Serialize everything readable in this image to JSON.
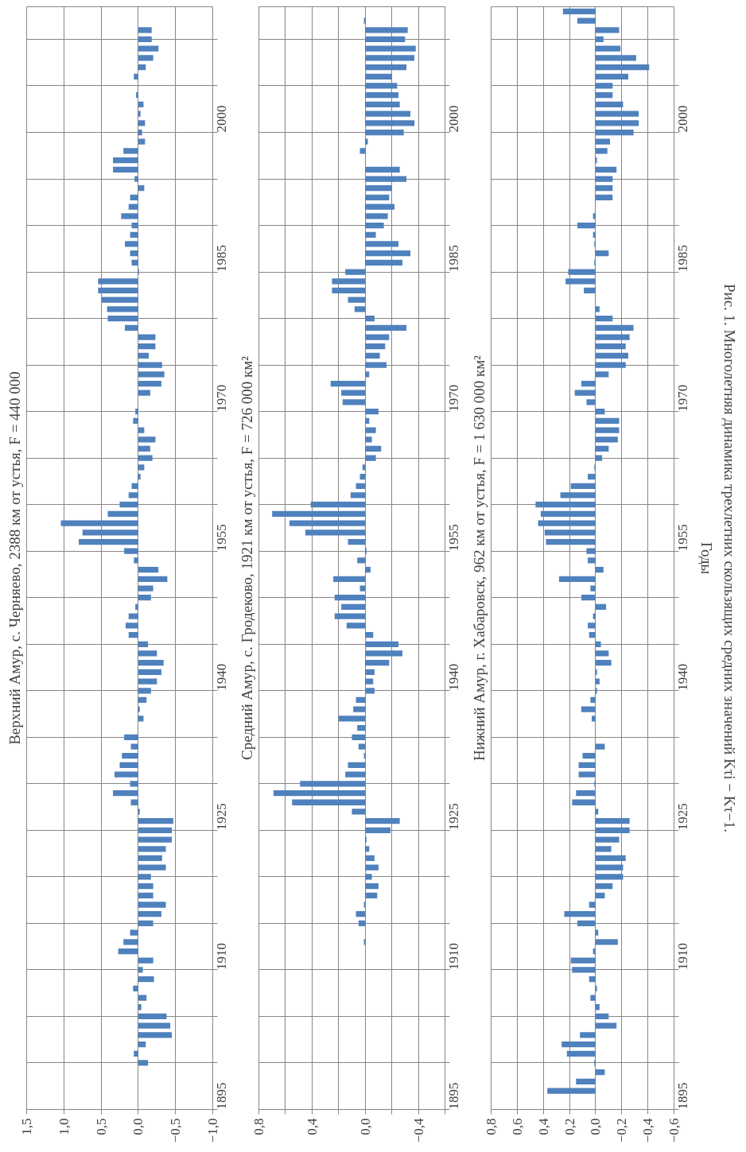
{
  "chart_data": [
    {
      "type": "bar",
      "orientation": "horizontal",
      "title": "Верхний Амур, с. Черняево, 2388 км от устья, F = 440 000",
      "color": "#4f81bd",
      "grid": true,
      "xlim": [
        1.5,
        -1.0
      ],
      "xticks": [
        {
          "value": 1.5,
          "label": "1,5"
        },
        {
          "value": 1.0,
          "label": "1,0"
        },
        {
          "value": 0.5,
          "label": "0,5"
        },
        {
          "value": 0.0,
          "label": "0,0"
        },
        {
          "value": -0.5,
          "label": "−0,5"
        },
        {
          "value": -1.0,
          "label": "−1,0"
        }
      ],
      "ylim": [
        1895,
        2013.5
      ],
      "yticks": [
        1895,
        {
          "value": 1900,
          "label": null
        },
        {
          "value": 1905,
          "label": null
        },
        1910,
        {
          "value": 1915,
          "label": null
        },
        {
          "value": 1920,
          "label": null
        },
        1925,
        {
          "value": 1930,
          "label": null
        },
        {
          "value": 1935,
          "label": null
        },
        1940,
        {
          "value": 1945,
          "label": null
        },
        {
          "value": 1950,
          "label": null
        },
        1955,
        {
          "value": 1960,
          "label": null
        },
        {
          "value": 1965,
          "label": null
        },
        1970,
        {
          "value": 1975,
          "label": null
        },
        {
          "value": 1980,
          "label": null
        },
        1985,
        {
          "value": 1990,
          "label": null
        },
        {
          "value": 1995,
          "label": null
        },
        2000,
        {
          "value": 2005,
          "label": null
        },
        {
          "value": 2010,
          "label": null
        }
      ],
      "x": [
        1900,
        1901,
        1902,
        1903,
        1904,
        1905,
        1906,
        1907,
        1908,
        1909,
        1910,
        1911,
        1912,
        1913,
        1914,
        1915,
        1916,
        1917,
        1918,
        1919,
        1920,
        1921,
        1922,
        1923,
        1924,
        1925,
        1926,
        1927,
        1928,
        1929,
        1930,
        1931,
        1932,
        1933,
        1934,
        1935,
        1936,
        1937,
        1938,
        1939,
        1940,
        1941,
        1942,
        1943,
        1944,
        1945,
        1946,
        1947,
        1948,
        1949,
        1950,
        1951,
        1952,
        1953,
        1954,
        1955,
        1956,
        1957,
        1958,
        1959,
        1960,
        1961,
        1962,
        1963,
        1964,
        1965,
        1966,
        1967,
        1968,
        1969,
        1970,
        1971,
        1972,
        1973,
        1974,
        1975,
        1976,
        1977,
        1978,
        1979,
        1980,
        1981,
        1982,
        1983,
        1984,
        1985,
        1986,
        1987,
        1988,
        1989,
        1990,
        1991,
        1992,
        1993,
        1994,
        1995,
        1996,
        1997,
        1998,
        1999,
        2000,
        2001,
        2002,
        2003,
        2004,
        2005,
        2006,
        2007,
        2008,
        2009,
        2010,
        2011
      ],
      "values": [
        -0.13,
        0.06,
        -0.1,
        -0.45,
        -0.43,
        -0.38,
        -0.04,
        -0.11,
        0.07,
        -0.21,
        -0.06,
        -0.2,
        0.27,
        0.2,
        0.11,
        -0.2,
        -0.31,
        -0.37,
        -0.2,
        -0.2,
        -0.17,
        -0.37,
        -0.32,
        -0.37,
        -0.45,
        -0.45,
        -0.47,
        -0.02,
        0.1,
        0.34,
        0.11,
        0.32,
        0.25,
        0.22,
        0.1,
        0.19,
        0,
        -0.07,
        -0.02,
        -0.11,
        -0.17,
        -0.25,
        -0.31,
        -0.34,
        -0.25,
        -0.13,
        0.13,
        0.17,
        0.13,
        0.04,
        -0.17,
        -0.2,
        -0.39,
        -0.27,
        0.06,
        0.19,
        0.8,
        0.75,
        1.04,
        0.41,
        0.25,
        0.13,
        0.09,
        -0.03,
        -0.08,
        -0.19,
        -0.16,
        -0.23,
        -0.08,
        0.07,
        0.04,
        0,
        -0.16,
        -0.31,
        -0.35,
        -0.32,
        -0.14,
        -0.23,
        -0.23,
        0.18,
        0.41,
        0.42,
        0.49,
        0.54,
        0.54,
        -0.01,
        0.09,
        0.11,
        0.18,
        0.11,
        0.09,
        0.23,
        0.13,
        0.11,
        -0.08,
        0.05,
        0.34,
        0.34,
        0.2,
        -0.09,
        -0.05,
        -0.09,
        -0.03,
        -0.07,
        0.03,
        0,
        0.06,
        -0.1,
        -0.2,
        -0.27,
        -0.18,
        -0.18
      ]
    },
    {
      "type": "bar",
      "orientation": "horizontal",
      "title": "Средний Амур, с. Гродеково, 1921 км от устья, F = 726 000 км²",
      "color": "#4f81bd",
      "grid": true,
      "xlim": [
        0.8,
        -0.6
      ],
      "xticks": [
        {
          "value": 0.8,
          "label": "0,8"
        },
        {
          "value": 0.6,
          "label": null
        },
        {
          "value": 0.4,
          "label": "0,4"
        },
        {
          "value": 0.2,
          "label": null
        },
        {
          "value": 0.0,
          "label": "0,0"
        },
        {
          "value": -0.2,
          "label": null
        },
        {
          "value": -0.4,
          "label": "−0,4"
        },
        {
          "value": -0.6,
          "label": null
        }
      ],
      "ylim": [
        1895,
        2013.5
      ],
      "yticks": [
        1895,
        {
          "value": 1900,
          "label": null
        },
        {
          "value": 1905,
          "label": null
        },
        1910,
        {
          "value": 1915,
          "label": null
        },
        {
          "value": 1920,
          "label": null
        },
        1925,
        {
          "value": 1930,
          "label": null
        },
        {
          "value": 1935,
          "label": null
        },
        1940,
        {
          "value": 1945,
          "label": null
        },
        {
          "value": 1950,
          "label": null
        },
        1955,
        {
          "value": 1960,
          "label": null
        },
        {
          "value": 1965,
          "label": null
        },
        1970,
        {
          "value": 1975,
          "label": null
        },
        {
          "value": 1980,
          "label": null
        },
        1985,
        {
          "value": 1990,
          "label": null
        },
        {
          "value": 1995,
          "label": null
        },
        2000,
        {
          "value": 2005,
          "label": null
        },
        {
          "value": 2010,
          "label": null
        }
      ],
      "x": [
        1913,
        1914,
        1915,
        1916,
        1917,
        1918,
        1919,
        1920,
        1921,
        1922,
        1923,
        1924,
        1925,
        1926,
        1927,
        1928,
        1929,
        1930,
        1931,
        1932,
        1933,
        1934,
        1935,
        1936,
        1937,
        1938,
        1939,
        1940,
        1941,
        1942,
        1943,
        1944,
        1945,
        1946,
        1947,
        1948,
        1949,
        1950,
        1951,
        1952,
        1953,
        1954,
        1955,
        1956,
        1957,
        1958,
        1959,
        1960,
        1961,
        1962,
        1963,
        1964,
        1965,
        1966,
        1967,
        1968,
        1969,
        1970,
        1971,
        1972,
        1973,
        1974,
        1975,
        1976,
        1977,
        1978,
        1979,
        1980,
        1981,
        1982,
        1983,
        1984,
        1985,
        1986,
        1987,
        1988,
        1989,
        1990,
        1991,
        1992,
        1993,
        1994,
        1995,
        1996,
        1997,
        1998,
        1999,
        2000,
        2001,
        2002,
        2003,
        2004,
        2005,
        2006,
        2007,
        2008,
        2009,
        2010,
        2011,
        2012
      ],
      "values": [
        0.01,
        0,
        0.05,
        0.07,
        0.01,
        -0.09,
        -0.1,
        -0.05,
        -0.1,
        -0.07,
        -0.03,
        -0.01,
        -0.19,
        -0.26,
        0.1,
        0.55,
        0.69,
        0.49,
        0.15,
        0.13,
        0.01,
        0.05,
        0.1,
        0.06,
        0.2,
        0.09,
        0.07,
        -0.07,
        -0.06,
        -0.07,
        -0.18,
        -0.28,
        -0.25,
        -0.06,
        0.14,
        0.23,
        0.18,
        0.23,
        0.04,
        0.24,
        -0.04,
        0.06,
        -0.01,
        0.13,
        0.45,
        0.57,
        0.7,
        0.41,
        0.11,
        0.07,
        0.04,
        0.02,
        -0.08,
        -0.12,
        -0.05,
        -0.08,
        -0.03,
        -0.1,
        0.17,
        0.18,
        0.26,
        -0.03,
        -0.16,
        -0.11,
        -0.15,
        -0.18,
        -0.31,
        -0.07,
        0.08,
        0.13,
        0.25,
        0.25,
        0.15,
        -0.28,
        -0.34,
        -0.25,
        -0.08,
        -0.14,
        -0.17,
        -0.22,
        -0.18,
        -0.2,
        -0.31,
        -0.26,
        0,
        0.04,
        -0.02,
        -0.29,
        -0.37,
        -0.34,
        -0.26,
        -0.25,
        -0.24,
        -0.2,
        -0.31,
        -0.37,
        -0.38,
        -0.3,
        -0.32,
        0.01
      ]
    },
    {
      "type": "bar",
      "orientation": "horizontal",
      "title": "Нижний Амур, г. Хабаровск, 962 км от устья, F = 1 630 000 км²",
      "ylabel": "Годы",
      "color": "#4f81bd",
      "grid": true,
      "annotations": [
        "Рис. 1. Многолетняя динамика трехлетних скользящих средних значений Kτi − Kτ−1."
      ],
      "xlim": [
        0.8,
        -0.6
      ],
      "xticks": [
        {
          "value": 0.8,
          "label": "0,8"
        },
        {
          "value": 0.6,
          "label": "0,6"
        },
        {
          "value": 0.4,
          "label": "0,4"
        },
        {
          "value": 0.2,
          "label": "0,2"
        },
        {
          "value": 0.0,
          "label": "0,0"
        },
        {
          "value": -0.2,
          "label": "−0,2"
        },
        {
          "value": -0.4,
          "label": "−0,4"
        },
        {
          "value": -0.6,
          "label": "−0,6"
        }
      ],
      "ylim": [
        1895,
        2013.5
      ],
      "yticks": [
        1895,
        {
          "value": 1900,
          "label": null
        },
        {
          "value": 1905,
          "label": null
        },
        1910,
        {
          "value": 1915,
          "label": null
        },
        {
          "value": 1920,
          "label": null
        },
        1925,
        {
          "value": 1930,
          "label": null
        },
        {
          "value": 1935,
          "label": null
        },
        1940,
        {
          "value": 1945,
          "label": null
        },
        {
          "value": 1950,
          "label": null
        },
        1955,
        {
          "value": 1960,
          "label": null
        },
        {
          "value": 1965,
          "label": null
        },
        1970,
        {
          "value": 1975,
          "label": null
        },
        {
          "value": 1980,
          "label": null
        },
        1985,
        {
          "value": 1990,
          "label": null
        },
        {
          "value": 1995,
          "label": null
        },
        2000,
        {
          "value": 2005,
          "label": null
        },
        {
          "value": 2010,
          "label": null
        }
      ],
      "x": [
        1897,
        1898,
        1899,
        1900,
        1901,
        1902,
        1903,
        1904,
        1905,
        1906,
        1907,
        1908,
        1909,
        1910,
        1911,
        1912,
        1913,
        1914,
        1915,
        1916,
        1917,
        1918,
        1919,
        1920,
        1921,
        1922,
        1923,
        1924,
        1925,
        1926,
        1927,
        1928,
        1929,
        1930,
        1931,
        1932,
        1933,
        1934,
        1935,
        1936,
        1937,
        1938,
        1939,
        1940,
        1941,
        1942,
        1943,
        1944,
        1945,
        1946,
        1947,
        1948,
        1949,
        1950,
        1951,
        1952,
        1953,
        1954,
        1955,
        1956,
        1957,
        1958,
        1959,
        1960,
        1961,
        1962,
        1963,
        1964,
        1965,
        1966,
        1967,
        1968,
        1969,
        1970,
        1971,
        1972,
        1973,
        1974,
        1975,
        1976,
        1977,
        1978,
        1979,
        1980,
        1981,
        1982,
        1983,
        1984,
        1985,
        1986,
        1987,
        1988,
        1989,
        1990,
        1991,
        1992,
        1993,
        1994,
        1995,
        1996,
        1997,
        1998,
        1999,
        2000,
        2001,
        2002,
        2003,
        2004,
        2005,
        2006,
        2007,
        2008,
        2009,
        2010,
        2011,
        2012,
        2013
      ],
      "values": [
        0.37,
        0.15,
        -0.07,
        0.01,
        0.22,
        0.26,
        0.12,
        -0.16,
        -0.1,
        -0.03,
        0.04,
        -0.01,
        0.05,
        0.18,
        0.19,
        0.02,
        -0.17,
        -0.02,
        0.14,
        0.24,
        0.05,
        -0.07,
        -0.13,
        -0.21,
        -0.21,
        -0.23,
        -0.12,
        -0.18,
        -0.26,
        -0.26,
        -0.02,
        0.18,
        0.15,
        0.01,
        0.13,
        0.13,
        0.1,
        -0.07,
        0,
        0,
        0.03,
        0.11,
        0.04,
        -0.01,
        -0.03,
        -0.01,
        -0.12,
        -0.1,
        -0.04,
        0.05,
        0.06,
        0.02,
        -0.08,
        0.11,
        0.04,
        0.28,
        -0.06,
        0.06,
        0.07,
        0.38,
        0.39,
        0.44,
        0.42,
        0.46,
        0.27,
        0.19,
        0.06,
        0.01,
        -0.05,
        -0.1,
        -0.17,
        -0.18,
        -0.18,
        -0.07,
        0.07,
        0.16,
        0.11,
        -0.1,
        -0.23,
        -0.25,
        -0.23,
        -0.26,
        -0.29,
        -0.13,
        -0.03,
        0,
        0.09,
        0.23,
        0.21,
        0.01,
        -0.1,
        0.01,
        0.02,
        0.14,
        0.02,
        0,
        -0.13,
        -0.13,
        -0.13,
        -0.16,
        -0.01,
        -0.09,
        -0.11,
        -0.29,
        -0.33,
        -0.33,
        -0.21,
        -0.13,
        -0.13,
        -0.25,
        -0.41,
        -0.31,
        -0.19,
        -0.06,
        -0.18,
        0.14,
        0.25
      ]
    }
  ]
}
